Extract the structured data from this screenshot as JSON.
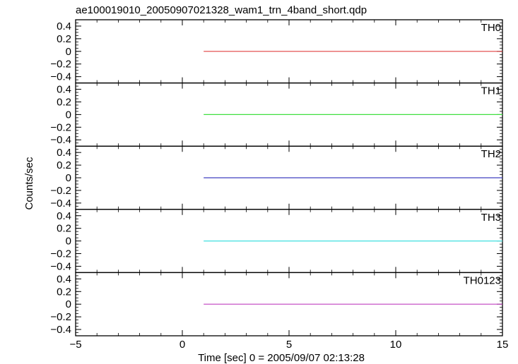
{
  "chart_data": {
    "type": "line",
    "title": "ae100019010_20050907021328_wam1_trn_4band_short.qdp",
    "xlabel": "Time [sec] 0 = 2005/09/07 02:13:28",
    "ylabel": "Counts/sec",
    "xlim": [
      -5,
      15
    ],
    "ylim": [
      -0.5,
      0.5
    ],
    "x_ticks": [
      -5,
      0,
      5,
      10,
      15
    ],
    "x_tick_labels": [
      "−5",
      "0",
      "5",
      "10",
      "15"
    ],
    "y_ticks": [
      0.4,
      0.2,
      0,
      -0.2,
      -0.4
    ],
    "y_tick_labels": [
      "0.4",
      "0.2",
      "0",
      "−0.2",
      "−0.4"
    ],
    "grid": false,
    "panels": [
      {
        "name": "TH0",
        "color": "#e04040",
        "x": [
          1,
          15
        ],
        "y": [
          0,
          0
        ]
      },
      {
        "name": "TH1",
        "color": "#40e040",
        "x": [
          1,
          15
        ],
        "y": [
          0,
          0
        ]
      },
      {
        "name": "TH2",
        "color": "#4040c0",
        "x": [
          1,
          15
        ],
        "y": [
          0,
          0
        ]
      },
      {
        "name": "TH3",
        "color": "#40e0e0",
        "x": [
          1,
          15
        ],
        "y": [
          0,
          0
        ]
      },
      {
        "name": "TH0123",
        "color": "#c040c0",
        "x": [
          1,
          15
        ],
        "y": [
          0,
          0
        ]
      }
    ]
  }
}
